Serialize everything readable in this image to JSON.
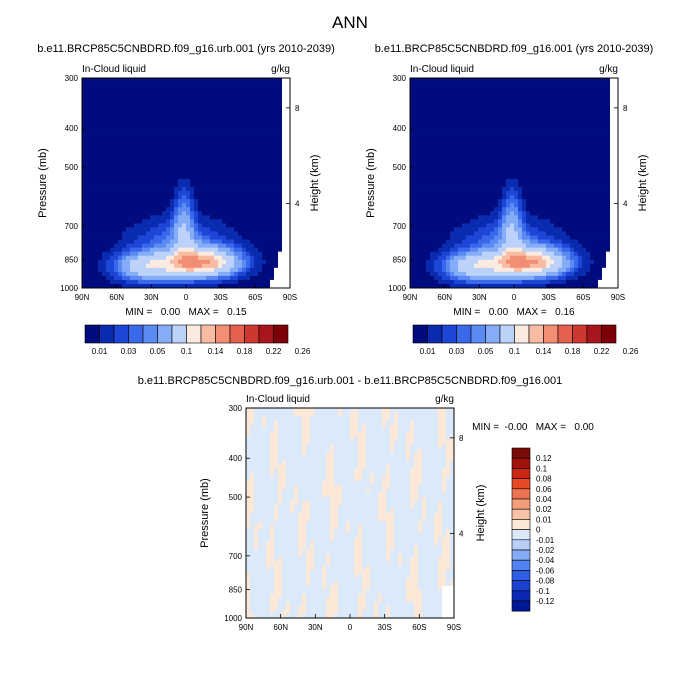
{
  "figure": {
    "title": "ANN",
    "colors": {
      "seq_scale": [
        "#000c7d",
        "#0a2bb0",
        "#1d46d6",
        "#3a68ea",
        "#5a8af2",
        "#85acf6",
        "#bcd2fb",
        "#fbeadf",
        "#f8bca3",
        "#f28e74",
        "#e2604d",
        "#cc3730",
        "#a8151d",
        "#7d0009"
      ],
      "diff_scale": [
        "#001796",
        "#0a28b4",
        "#1a41d2",
        "#2f5ee6",
        "#5283f0",
        "#85aaf6",
        "#b8cff8",
        "#dce9fb",
        "#fbe8d6",
        "#f8c3a6",
        "#f49d7b",
        "#ee7350",
        "#e74a27",
        "#cc2712",
        "#9f130c",
        "#7a0b08"
      ]
    }
  },
  "panel1": {
    "title": "b.e11.BRCP85C5CNBDRD.f09_g16.urb.001 (yrs 2010-2039)",
    "left_label": "In-Cloud liquid",
    "right_label": "g/kg",
    "ylabel": "Pressure (mb)",
    "y2label": "Height (km)",
    "minmax": "MIN =   0.00   MAX =   0.15"
  },
  "panel2": {
    "title": "b.e11.BRCP85C5CNBDRD.f09_g16.001 (yrs 2010-2039)",
    "left_label": "In-Cloud liquid",
    "right_label": "g/kg",
    "ylabel": "Pressure (mb)",
    "y2label": "Height (km)",
    "minmax": "MIN =   0.00   MAX =   0.16"
  },
  "panel3": {
    "title": "b.e11.BRCP85C5CNBDRD.f09_g16.urb.001 - b.e11.BRCP85C5CNBDRD.f09_g16.001",
    "left_label": "In-Cloud liquid",
    "right_label": "g/kg",
    "ylabel": "Pressure (mb)",
    "y2label": "Height (km)",
    "minmax": "MIN =  -0.00   MAX =   0.00"
  },
  "chart_data": [
    {
      "type": "heatmap",
      "title": "b.e11.BRCP85C5CNBDRD.f09_g16.urb.001 (yrs 2010-2039)",
      "variable": "In-Cloud liquid",
      "units": "g/kg",
      "x_ticks": [
        "90N",
        "60N",
        "30N",
        "0",
        "30S",
        "60S",
        "90S"
      ],
      "x_values": [
        90,
        60,
        30,
        0,
        -30,
        -60,
        -90
      ],
      "y_ticks": [
        "300",
        "400",
        "500",
        "700",
        "850",
        "1000"
      ],
      "y_values": [
        300,
        400,
        500,
        700,
        850,
        1000
      ],
      "y2_ticks": [
        "8",
        "4"
      ],
      "y2_values": [
        8,
        4
      ],
      "ylabel": "Pressure (mb)",
      "y2label": "Height (km)",
      "min": 0.0,
      "max": 0.15,
      "levels": [
        "0.01",
        "0.03",
        "0.05",
        "0.1",
        "0.14",
        "0.18",
        "0.22",
        "0.26"
      ],
      "level_values": [
        0.01,
        0.02,
        0.03,
        0.04,
        0.05,
        0.07,
        0.1,
        0.12,
        0.14,
        0.16,
        0.18,
        0.2,
        0.22,
        0.24,
        0.26
      ],
      "max_location": {
        "lat": -15,
        "pressure": 870
      }
    },
    {
      "type": "heatmap",
      "title": "b.e11.BRCP85C5CNBDRD.f09_g16.001 (yrs 2010-2039)",
      "variable": "In-Cloud liquid",
      "units": "g/kg",
      "x_ticks": [
        "90N",
        "60N",
        "30N",
        "0",
        "30S",
        "60S",
        "90S"
      ],
      "x_values": [
        90,
        60,
        30,
        0,
        -30,
        -60,
        -90
      ],
      "y_ticks": [
        "300",
        "400",
        "500",
        "700",
        "850",
        "1000"
      ],
      "y_values": [
        300,
        400,
        500,
        700,
        850,
        1000
      ],
      "y2_ticks": [
        "8",
        "4"
      ],
      "y2_values": [
        8,
        4
      ],
      "ylabel": "Pressure (mb)",
      "y2label": "Height (km)",
      "min": 0.0,
      "max": 0.16,
      "levels": [
        "0.01",
        "0.03",
        "0.05",
        "0.1",
        "0.14",
        "0.18",
        "0.22",
        "0.26"
      ],
      "level_values": [
        0.01,
        0.02,
        0.03,
        0.04,
        0.05,
        0.07,
        0.1,
        0.12,
        0.14,
        0.16,
        0.18,
        0.2,
        0.22,
        0.24,
        0.26
      ],
      "max_location": {
        "lat": -15,
        "pressure": 870
      }
    },
    {
      "type": "heatmap",
      "title": "b.e11.BRCP85C5CNBDRD.f09_g16.urb.001 - b.e11.BRCP85C5CNBDRD.f09_g16.001",
      "variable": "In-Cloud liquid",
      "units": "g/kg",
      "x_ticks": [
        "90N",
        "60N",
        "30N",
        "0",
        "30S",
        "60S",
        "90S"
      ],
      "x_values": [
        90,
        60,
        30,
        0,
        -30,
        -60,
        -90
      ],
      "y_ticks": [
        "300",
        "400",
        "500",
        "700",
        "850",
        "1000"
      ],
      "y_values": [
        300,
        400,
        500,
        700,
        850,
        1000
      ],
      "y2_ticks": [
        "8",
        "4"
      ],
      "y2_values": [
        8,
        4
      ],
      "ylabel": "Pressure (mb)",
      "y2label": "Height (km)",
      "min": -0.0,
      "max": 0.0,
      "levels": [
        "0.12",
        "0.1",
        "0.08",
        "0.06",
        "0.04",
        "0.02",
        "0.01",
        "0",
        "-0.01",
        "-0.02",
        "-0.04",
        "-0.06",
        "-0.08",
        "-0.1",
        "-0.12"
      ],
      "level_values": [
        0.12,
        0.1,
        0.08,
        0.06,
        0.04,
        0.02,
        0.01,
        0,
        -0.01,
        -0.02,
        -0.04,
        -0.06,
        -0.08,
        -0.1,
        -0.12
      ]
    }
  ]
}
